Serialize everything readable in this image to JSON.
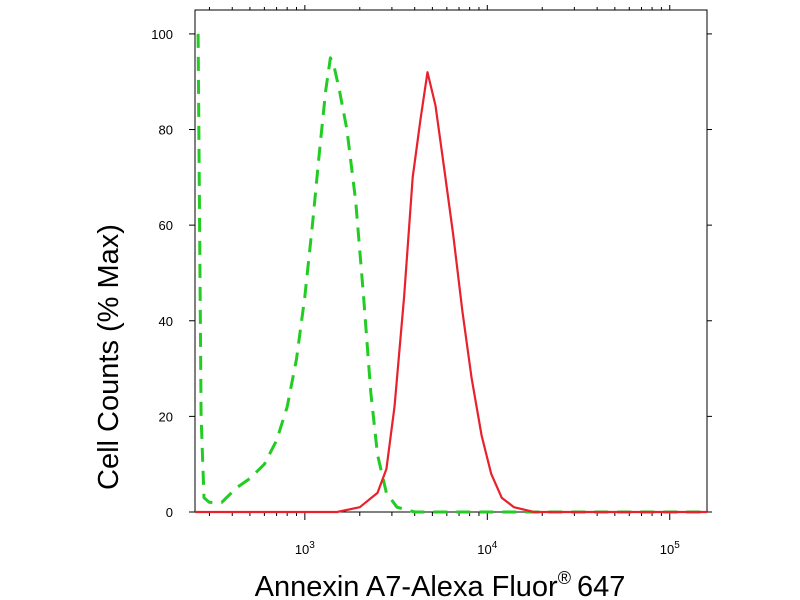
{
  "chart_data": {
    "type": "line",
    "title": "",
    "xlabel": "Annexin A7-Alexa Fluor",
    "xlabel_superscript": "®",
    "xlabel_suffix": "647",
    "ylabel": "Cell Counts (% Max)",
    "x_scale": "log",
    "xlim": [
      250,
      160000
    ],
    "ylim": [
      0,
      105
    ],
    "x_ticks": [
      {
        "value": 1000,
        "base": "10",
        "exp": "3"
      },
      {
        "value": 10000,
        "base": "10",
        "exp": "4"
      },
      {
        "value": 100000,
        "base": "10",
        "exp": "5"
      }
    ],
    "y_ticks": [
      {
        "value": 0,
        "label": "0"
      },
      {
        "value": 20,
        "label": "20"
      },
      {
        "value": 40,
        "label": "40"
      },
      {
        "value": 60,
        "label": "60"
      },
      {
        "value": 80,
        "label": "80"
      },
      {
        "value": 100,
        "label": "100"
      }
    ],
    "grid": false,
    "series": [
      {
        "color": "#22cc22",
        "style": "dashed",
        "points": [
          [
            260,
            100
          ],
          [
            265,
            60
          ],
          [
            270,
            20
          ],
          [
            280,
            3
          ],
          [
            300,
            2
          ],
          [
            350,
            2
          ],
          [
            420,
            5
          ],
          [
            500,
            7
          ],
          [
            600,
            10
          ],
          [
            700,
            15
          ],
          [
            800,
            22
          ],
          [
            900,
            32
          ],
          [
            1000,
            45
          ],
          [
            1100,
            60
          ],
          [
            1200,
            75
          ],
          [
            1300,
            88
          ],
          [
            1380,
            95
          ],
          [
            1450,
            93
          ],
          [
            1550,
            88
          ],
          [
            1700,
            80
          ],
          [
            1900,
            65
          ],
          [
            2100,
            45
          ],
          [
            2300,
            25
          ],
          [
            2500,
            12
          ],
          [
            2800,
            4
          ],
          [
            3200,
            1
          ],
          [
            4000,
            0
          ],
          [
            10000,
            0
          ],
          [
            160000,
            0
          ]
        ]
      },
      {
        "color": "#e8212c",
        "style": "solid",
        "points": [
          [
            250,
            0
          ],
          [
            1500,
            0
          ],
          [
            2000,
            1
          ],
          [
            2500,
            4
          ],
          [
            2800,
            9
          ],
          [
            3100,
            22
          ],
          [
            3500,
            45
          ],
          [
            3900,
            70
          ],
          [
            4300,
            82
          ],
          [
            4700,
            92
          ],
          [
            5200,
            85
          ],
          [
            5800,
            72
          ],
          [
            6500,
            58
          ],
          [
            7300,
            42
          ],
          [
            8200,
            28
          ],
          [
            9300,
            16
          ],
          [
            10500,
            8
          ],
          [
            12000,
            3
          ],
          [
            14000,
            1
          ],
          [
            18000,
            0
          ],
          [
            160000,
            0
          ]
        ]
      }
    ]
  }
}
